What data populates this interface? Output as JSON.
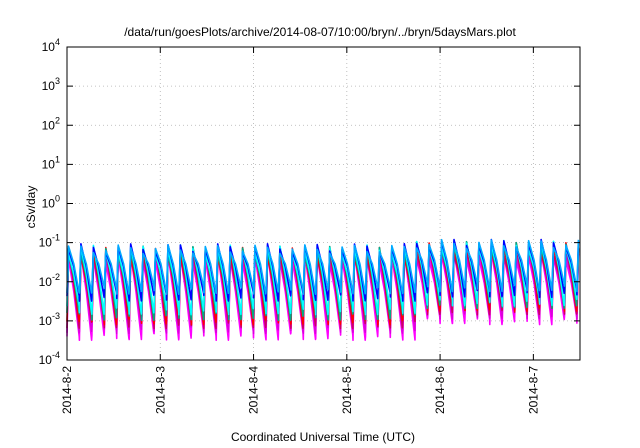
{
  "chart_data": {
    "type": "line",
    "title": "/data/run/goesPlots/archive/2014-08-07/10:00/bryn/../bryn/5daysMars.plot",
    "xlabel": "Coordinated Universal Time (UTC)",
    "ylabel": "cSv/day",
    "yscale": "log",
    "ylim": [
      0.0001,
      10000
    ],
    "xlim": [
      "2014-08-02",
      "2014-08-07 12:00"
    ],
    "grid": true,
    "x_ticks": [
      "2014-8-2",
      "2014-8-3",
      "2014-8-4",
      "2014-8-5",
      "2014-8-6",
      "2014-8-7"
    ],
    "y_ticks": [
      {
        "base": "10",
        "exp": "-4"
      },
      {
        "base": "10",
        "exp": "-3"
      },
      {
        "base": "10",
        "exp": "-2"
      },
      {
        "base": "10",
        "exp": "-1"
      },
      {
        "base": "10",
        "exp": "0"
      },
      {
        "base": "10",
        "exp": "1"
      },
      {
        "base": "10",
        "exp": "2"
      },
      {
        "base": "10",
        "exp": "3"
      },
      {
        "base": "10",
        "exp": "4"
      }
    ],
    "cycles_per_day": 7.5,
    "series": [
      {
        "color": "#ff00ff",
        "peak": 0.04,
        "trough": 0.0004,
        "peak_late": 0.045,
        "trough_late": 0.001
      },
      {
        "color": "#dd00dd",
        "peak": 0.05,
        "trough": 0.0006,
        "peak_late": 0.055,
        "trough_late": 0.0014
      },
      {
        "color": "#cc0066",
        "peak": 0.055,
        "trough": 0.0008,
        "peak_late": 0.065,
        "trough_late": 0.0018
      },
      {
        "color": "#ff0000",
        "peak": 0.06,
        "trough": 0.001,
        "peak_late": 0.08,
        "trough_late": 0.0022
      },
      {
        "color": "#00aa88",
        "peak": 0.065,
        "trough": 0.0013,
        "peak_late": 0.085,
        "trough_late": 0.0026
      },
      {
        "color": "#00ffff",
        "peak": 0.07,
        "trough": 0.0018,
        "peak_late": 0.09,
        "trough_late": 0.003
      },
      {
        "color": "#0000ff",
        "peak": 0.075,
        "trough": 0.004,
        "peak_late": 0.1,
        "trough_late": 0.005
      },
      {
        "color": "#00aaff",
        "peak": 0.07,
        "trough": 0.006,
        "peak_late": 0.095,
        "trough_late": 0.007
      }
    ]
  }
}
